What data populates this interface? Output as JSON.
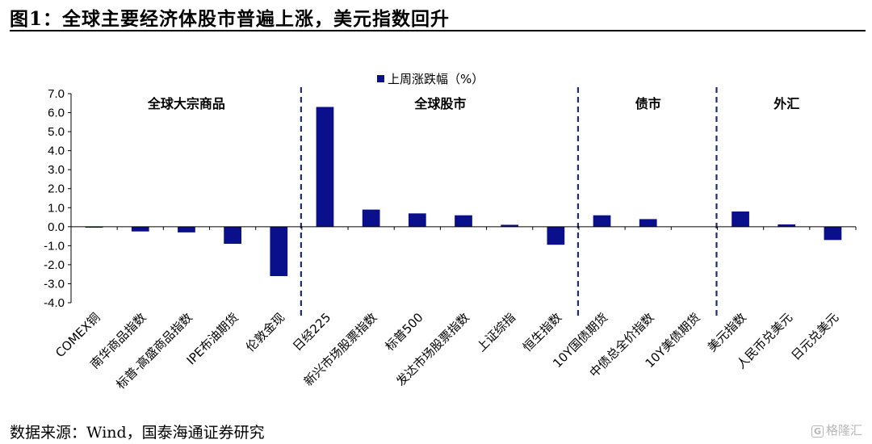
{
  "page": {
    "figure_title": "图1：全球主要经济体股市普遍上涨，美元指数回升",
    "source": "数据来源：Wind，国泰海通证券研究",
    "watermark": "格隆汇"
  },
  "colors": {
    "bar": "#0a0f8c",
    "axis": "#000000",
    "divider": "#1f2e6b"
  },
  "chart_data": {
    "type": "bar",
    "title": "",
    "legend": {
      "label": "上周涨跌幅（%）",
      "position": "top-center"
    },
    "categories": [
      "COMEX铜",
      "南华商品指数",
      "标普-高盛商品指数",
      "IPE布油期货",
      "伦敦金现",
      "日经225",
      "新兴市场股票指数",
      "标普500",
      "发达市场股票指数",
      "上证综指",
      "恒生指数",
      "10Y国债期货",
      "中债总全价指数",
      "10Y美债期货",
      "美元指数",
      "人民币兑美元",
      "日元兑美元"
    ],
    "series": [
      {
        "name": "上周涨跌幅（%）",
        "values": [
          -0.05,
          -0.25,
          -0.3,
          -0.9,
          -2.6,
          6.3,
          0.9,
          0.7,
          0.6,
          0.1,
          -0.95,
          0.6,
          0.4,
          0.0,
          0.8,
          0.12,
          -0.7
        ]
      }
    ],
    "ylim": [
      -4.0,
      7.0
    ],
    "yticks": [
      "7.0",
      "6.0",
      "5.0",
      "4.0",
      "3.0",
      "2.0",
      "1.0",
      "0.0",
      "-1.0",
      "-2.0",
      "-3.0",
      "-4.0"
    ],
    "groups": [
      {
        "label": "全球大宗商品",
        "start": 0,
        "end": 4
      },
      {
        "label": "全球股市",
        "start": 5,
        "end": 10
      },
      {
        "label": "债市",
        "start": 11,
        "end": 13
      },
      {
        "label": "外汇",
        "start": 14,
        "end": 16
      }
    ],
    "grid": false
  }
}
